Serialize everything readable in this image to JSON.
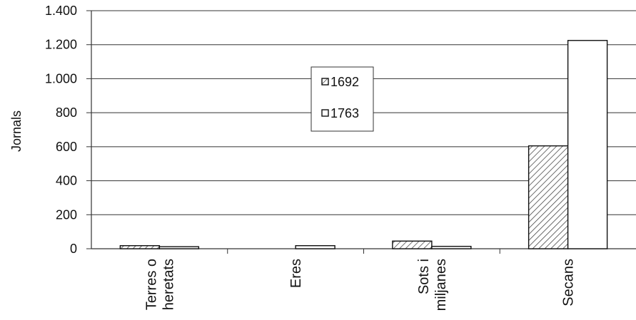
{
  "chart_data": {
    "type": "bar",
    "title": "",
    "xlabel": "",
    "ylabel": "Jornals",
    "ylim": [
      0,
      1400
    ],
    "yticks": [
      0,
      200,
      400,
      600,
      800,
      1000,
      1200,
      1400
    ],
    "ytick_labels": [
      "0",
      "200",
      "400",
      "600",
      "800",
      "1.000",
      "1.200",
      "1.400"
    ],
    "grid": "horizontal",
    "legend_position": "center",
    "categories": [
      [
        "Terres o",
        "heretats"
      ],
      [
        "Eres"
      ],
      [
        "Sots i",
        "miljanes"
      ],
      [
        "Secans"
      ]
    ],
    "series": [
      {
        "name": "1692",
        "fill": "hatched",
        "color": "#222222",
        "values": [
          18,
          0,
          45,
          605
        ]
      },
      {
        "name": "1763",
        "fill": "white",
        "color": "#ffffff",
        "values": [
          12,
          18,
          14,
          1225
        ]
      }
    ]
  }
}
